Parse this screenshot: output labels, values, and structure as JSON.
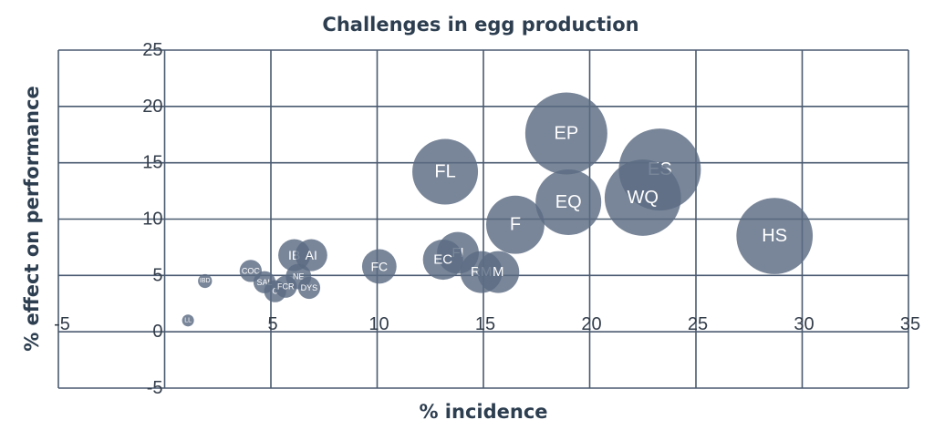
{
  "chart_data": {
    "type": "scatter",
    "subtype": "bubble",
    "title": "Challenges in egg production",
    "xlabel": "% incidence",
    "ylabel": "% effect on performance",
    "xlim": [
      -5,
      35
    ],
    "ylim": [
      -5,
      25
    ],
    "xticks": [
      "-5",
      "5",
      "10",
      "15",
      "20",
      "25",
      "30",
      "35"
    ],
    "yticks": [
      "25",
      "20",
      "15",
      "10",
      "5",
      "0",
      "-5"
    ],
    "grid": true,
    "colors": {
      "bubble": "#5b6b82",
      "grid": "#4a5a70",
      "title": "#2d3e50"
    },
    "points": [
      {
        "label": "EP",
        "x": 18.9,
        "y": 17.6,
        "size": 10
      },
      {
        "label": "ES",
        "x": 23.3,
        "y": 14.4,
        "size": 10
      },
      {
        "label": "WQ",
        "x": 22.5,
        "y": 11.9,
        "size": 9.3
      },
      {
        "label": "EQ",
        "x": 19.0,
        "y": 11.5,
        "size": 8
      },
      {
        "label": "FL",
        "x": 13.2,
        "y": 14.2,
        "size": 8
      },
      {
        "label": "F",
        "x": 16.5,
        "y": 9.5,
        "size": 7.1
      },
      {
        "label": "HS",
        "x": 28.7,
        "y": 8.5,
        "size": 9.3
      },
      {
        "label": "FI",
        "x": 13.8,
        "y": 7.0,
        "size": 5.1
      },
      {
        "label": "EC",
        "x": 13.1,
        "y": 6.4,
        "size": 4.9
      },
      {
        "label": "RM",
        "x": 14.9,
        "y": 5.3,
        "size": 5.1
      },
      {
        "label": "M",
        "x": 15.7,
        "y": 5.3,
        "size": 5.1
      },
      {
        "label": "FC",
        "x": 10.1,
        "y": 5.8,
        "size": 4.2
      },
      {
        "label": "IB",
        "x": 6.1,
        "y": 6.8,
        "size": 3.9
      },
      {
        "label": "AI",
        "x": 6.9,
        "y": 6.8,
        "size": 3.9
      },
      {
        "label": "NE",
        "x": 6.3,
        "y": 4.9,
        "size": 3.1
      },
      {
        "label": "COC",
        "x": 4.05,
        "y": 5.4,
        "size": 2.7
      },
      {
        "label": "SAL",
        "x": 4.7,
        "y": 4.4,
        "size": 2.7
      },
      {
        "label": "C",
        "x": 5.2,
        "y": 3.6,
        "size": 2.7
      },
      {
        "label": "FCR",
        "x": 5.7,
        "y": 4.0,
        "size": 2.7
      },
      {
        "label": "DYS",
        "x": 6.8,
        "y": 3.9,
        "size": 2.7
      },
      {
        "label": "IBD",
        "x": 1.9,
        "y": 4.5,
        "size": 1.7
      },
      {
        "label": "LL",
        "x": 1.1,
        "y": 1.0,
        "size": 1.45
      }
    ]
  }
}
